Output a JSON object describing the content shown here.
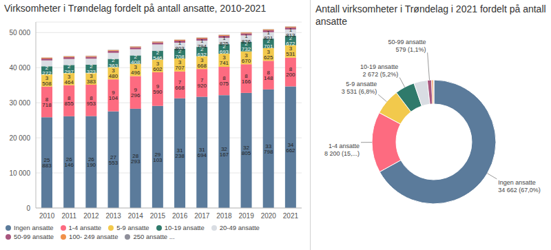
{
  "chart_data": [
    {
      "type": "bar",
      "stacked": true,
      "title": "Virksomheter i Trøndelag fordelt på antall ansatte, 2010-2021",
      "categories": [
        "2010",
        "2011",
        "2012",
        "2013",
        "2014",
        "2015",
        "2016",
        "2017",
        "2018",
        "2019",
        "2020",
        "2021"
      ],
      "ylim": [
        0,
        53000
      ],
      "yticks": [
        0,
        {
          "value": 10000,
          "label": "10 000"
        },
        {
          "value": 20000,
          "label": "20 000"
        },
        {
          "value": 30000,
          "label": "30 000"
        },
        {
          "value": 40000,
          "label": "40 000"
        },
        {
          "value": 50000,
          "label": "50 000"
        }
      ],
      "grid": true,
      "legend": "bottom",
      "data_labels": true,
      "series": [
        {
          "name": "Ingen ansatte",
          "color": "#5b7b9b",
          "values": [
            25883,
            26146,
            26190,
            27553,
            28293,
            29103,
            31238,
            31694,
            32167,
            32805,
            33798,
            34662
          ],
          "value_labels": [
            "25 883",
            "26 146",
            "26 190",
            "27 553",
            "28 293",
            "29 103",
            "31 238",
            "31 694",
            "32 167",
            "32 805",
            "33 798",
            "34 662"
          ]
        },
        {
          "name": "1-4 ansatte",
          "color": "#fd6b80",
          "values": [
            8718,
            8855,
            8953,
            9104,
            9296,
            9590,
            7668,
            7920,
            8075,
            8166,
            8148,
            8200
          ],
          "value_labels": [
            "8 718",
            "8 855",
            "8 953",
            "9 104",
            "9 296",
            "9 590",
            "7 668",
            "7 920",
            "8 075",
            "8 166",
            "8 148",
            "8 200"
          ]
        },
        {
          "name": "5-9 ansatte",
          "color": "#f2c94c",
          "values": [
            3508,
            3464,
            3383,
            3480,
            3496,
            3602,
            3707,
            3668,
            3741,
            3670,
            3625,
            3531
          ],
          "value_labels": [
            "3 508",
            "3 464",
            "3 383",
            "3 480",
            "3 496",
            "3 602",
            "3 707",
            "3 668",
            "3 741",
            "3 670",
            "3 625",
            "3 531"
          ]
        },
        {
          "name": "10-19 ansatte",
          "color": "#2f7a6b",
          "values": [
            2272,
            2297,
            2323,
            2363,
            2408,
            2546,
            2708,
            2632,
            2693,
            2732,
            2701,
            2672
          ],
          "value_labels": [
            "2 272",
            "2 297",
            "2 323",
            "2 363",
            "2 408",
            "2 546",
            "2 708",
            "2 632",
            "2 693",
            "2 732",
            "2 701",
            "2 672"
          ]
        },
        {
          "name": "20-49 ansatte",
          "color": "#d9dde3",
          "values": [
            1680,
            1690,
            1700,
            1720,
            1740,
            1770,
            1803,
            1794,
            1825,
            1826,
            1821,
            1813
          ],
          "value_labels": [
            null,
            null,
            null,
            null,
            null,
            null,
            "1 803",
            "1 794",
            "1 825",
            "1 826",
            "1 821",
            "1 813"
          ]
        },
        {
          "name": "50-99 ansatte",
          "color": "#a8567e",
          "values": [
            550,
            555,
            560,
            565,
            570,
            575,
            580,
            578,
            582,
            585,
            580,
            579
          ]
        },
        {
          "name": "100- 249 ansatte",
          "color": "#f0914a",
          "values": [
            220,
            222,
            224,
            226,
            228,
            230,
            232,
            231,
            233,
            234,
            232,
            230
          ]
        },
        {
          "name": "250 ansatte ...",
          "color": "#8f8f9a",
          "values": [
            70,
            71,
            72,
            73,
            74,
            75,
            76,
            75,
            76,
            76,
            75,
            75
          ]
        }
      ]
    },
    {
      "type": "pie",
      "title": "Antall virksomheter i Trøndelag i 2021 fordelt på antall ansatte",
      "data_labels": true,
      "categories": [
        "Ingen ansatte",
        "1-4 ansatte",
        "5-9 ansatte",
        "10-19 ansatte",
        "20-49 ansatte",
        "50-99 ansatte",
        "100- 249 ansatte",
        "250 ansatte ..."
      ],
      "values": [
        34662,
        8200,
        3531,
        2672,
        1813,
        579,
        230,
        75
      ],
      "value_labels": [
        "34 662 (67,0%)",
        "8 200 (15,...)",
        "3 531 (6,8%)",
        "2 672 (5,2%)",
        null,
        "579 (1,1%)",
        null,
        null
      ],
      "colors": [
        "#5b7b9b",
        "#fd6b80",
        "#f2c94c",
        "#2f7a6b",
        "#d9dde3",
        "#a8567e",
        "#f0914a",
        "#8f8f9a"
      ]
    }
  ]
}
